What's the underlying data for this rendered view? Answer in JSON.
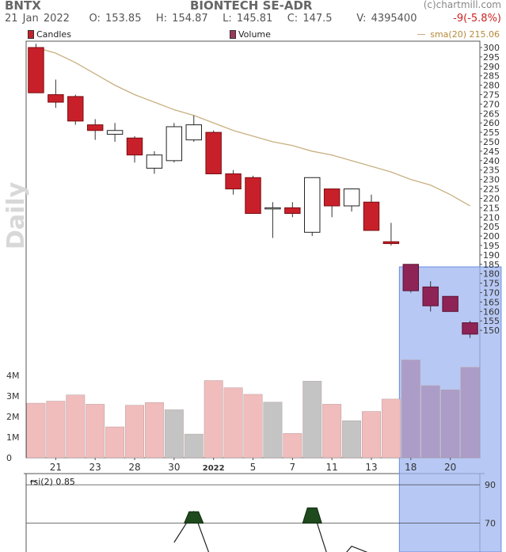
{
  "header": {
    "ticker": "BNTX",
    "company": "BIONTECH SE-ADR",
    "source": "(c)chartmill.com",
    "date": "21 Jan 2022",
    "open_label": "O: 153.85",
    "high_label": "H: 154.87",
    "low_label": "L: 145.81",
    "close_label": "C: 147.5",
    "volume_label": "V: 4395400",
    "change": "-9(-5.8%)"
  },
  "legend": {
    "candles": "Candles",
    "volume": "Volume",
    "sma": "sma(20) 215.06"
  },
  "side_label": "Daily",
  "rsi_label": "rsi(2) 0.85",
  "colors": {
    "down": "#c8202a",
    "up_fill": "#ffffff",
    "highlight_down": "#8e2456",
    "sma": "#c8b080",
    "vol_red": "#f0bcbc",
    "vol_gray": "#c4c4c4",
    "highlight_band": "#9fb6f0",
    "rsi_fill": "#1e4a1e"
  },
  "chart_data": [
    {
      "type": "candlestick",
      "title": "BIONTECH SE-ADR",
      "period": "Daily",
      "ylim": [
        145,
        300
      ],
      "y_ticks": [
        150,
        155,
        160,
        165,
        170,
        175,
        180,
        185,
        190,
        195,
        200,
        205,
        210,
        215,
        220,
        225,
        230,
        235,
        240,
        245,
        250,
        255,
        260,
        265,
        270,
        275,
        280,
        285,
        290,
        295,
        300
      ],
      "x_tick_labels": [
        "21",
        "23",
        "28",
        "30",
        "2022",
        "5",
        "7",
        "11",
        "13",
        "18",
        "20"
      ],
      "highlight_range": [
        19,
        23
      ],
      "sma": {
        "name": "sma(20)",
        "last": 215.06,
        "values": [
          300,
          297,
          292,
          286,
          280,
          275,
          271,
          267,
          264,
          260,
          256,
          253,
          250,
          248,
          245,
          243,
          240,
          237,
          234,
          230,
          227,
          222,
          216
        ]
      },
      "candles": [
        {
          "o": 300,
          "h": 302,
          "l": 276,
          "c": 276
        },
        {
          "o": 275,
          "h": 283,
          "l": 268,
          "c": 271
        },
        {
          "o": 274,
          "h": 275,
          "l": 259,
          "c": 261
        },
        {
          "o": 259,
          "h": 262,
          "l": 251,
          "c": 256
        },
        {
          "o": 254,
          "h": 260,
          "l": 250,
          "c": 256
        },
        {
          "o": 252,
          "h": 253,
          "l": 239,
          "c": 243
        },
        {
          "o": 236,
          "h": 245,
          "l": 233,
          "c": 243
        },
        {
          "o": 240,
          "h": 260,
          "l": 239,
          "c": 258
        },
        {
          "o": 251,
          "h": 264,
          "l": 250,
          "c": 259
        },
        {
          "o": 255,
          "h": 256,
          "l": 233,
          "c": 233
        },
        {
          "o": 233,
          "h": 235,
          "l": 222,
          "c": 225
        },
        {
          "o": 231,
          "h": 232,
          "l": 212,
          "c": 212
        },
        {
          "o": 215,
          "h": 218,
          "l": 199,
          "c": 215
        },
        {
          "o": 215,
          "h": 218,
          "l": 210,
          "c": 212
        },
        {
          "o": 202,
          "h": 231,
          "l": 200,
          "c": 231
        },
        {
          "o": 225,
          "h": 225,
          "l": 210,
          "c": 216
        },
        {
          "o": 216,
          "h": 225,
          "l": 213,
          "c": 225
        },
        {
          "o": 218,
          "h": 222,
          "l": 203,
          "c": 203
        },
        {
          "o": 197,
          "h": 207,
          "l": 195,
          "c": 196
        },
        {
          "o": 185,
          "h": 185,
          "l": 170,
          "c": 171
        },
        {
          "o": 173,
          "h": 176,
          "l": 160,
          "c": 163
        },
        {
          "o": 168,
          "h": 168,
          "l": 160,
          "c": 160
        },
        {
          "o": 154,
          "h": 155,
          "l": 146,
          "c": 148
        }
      ]
    },
    {
      "type": "bar",
      "title": "Volume",
      "ylim": [
        0,
        5000000
      ],
      "y_tick_labels": [
        "0",
        "1M",
        "2M",
        "3M",
        "4M"
      ],
      "values": [
        2650000,
        2750000,
        3050000,
        2600000,
        1500000,
        2550000,
        2680000,
        2330000,
        1150000,
        3750000,
        3400000,
        3080000,
        2700000,
        1180000,
        3720000,
        2600000,
        1800000,
        2250000,
        2850000,
        4750000,
        3500000,
        3300000,
        4390000
      ],
      "bar_colors": [
        "red",
        "red",
        "red",
        "red",
        "red",
        "red",
        "red",
        "gray",
        "gray",
        "red",
        "red",
        "red",
        "gray",
        "red",
        "gray",
        "red",
        "gray",
        "red",
        "red",
        "red",
        "red",
        "red",
        "red"
      ]
    },
    {
      "type": "line",
      "title": "rsi(2)",
      "last": 0.85,
      "ylim": [
        55,
        95
      ],
      "y_ticks": [
        70,
        90
      ],
      "values": [
        null,
        null,
        null,
        null,
        null,
        null,
        null,
        60,
        76,
        48,
        null,
        null,
        null,
        null,
        78,
        46,
        58,
        54,
        null,
        null,
        null,
        null,
        null
      ]
    }
  ]
}
